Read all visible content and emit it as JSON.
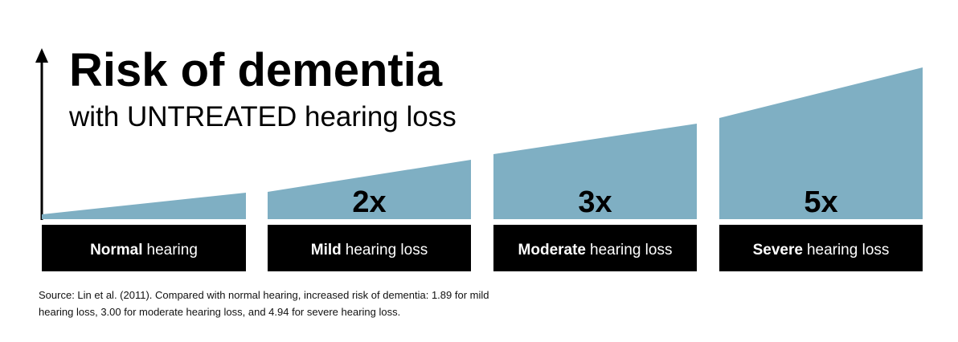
{
  "header": {
    "title": "Risk of dementia",
    "subtitle": "with UNTREATED hearing loss"
  },
  "panels": [
    {
      "bold": "Normal",
      "rest": "hearing"
    },
    {
      "bold": "Mild",
      "rest": "hearing loss",
      "multiplier": "2x"
    },
    {
      "bold": "Moderate",
      "rest": "hearing loss",
      "multiplier": "3x"
    },
    {
      "bold": "Severe",
      "rest": "hearing loss",
      "multiplier": "5x"
    }
  ],
  "source": "Source: Lin et al. (2011). Compared with normal hearing, increased risk of dementia: 1.89 for mild hearing loss, 3.00 for moderate hearing loss, and 4.94 for severe hearing loss."
}
